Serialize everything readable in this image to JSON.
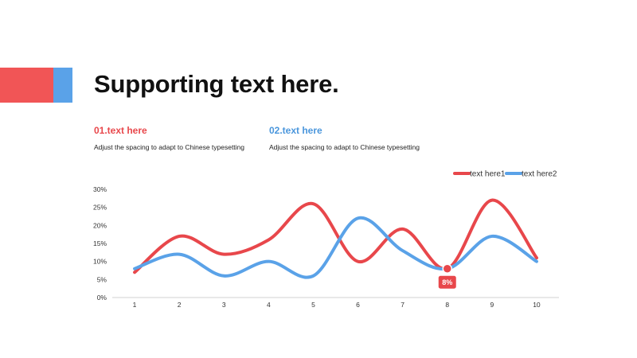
{
  "title": "Supporting text here.",
  "sections": [
    {
      "heading": "01.text here",
      "body": "Adjust the spacing to adapt to Chinese typesetting",
      "color": "#e8474b"
    },
    {
      "heading": "02.text here",
      "body": "Adjust the spacing to adapt to Chinese typesetting",
      "color": "#4a96dc"
    }
  ],
  "colors": {
    "red": "#f15556",
    "blue": "#5aa2e8"
  },
  "chart_data": {
    "type": "line",
    "smooth": true,
    "x": [
      1,
      2,
      3,
      4,
      5,
      6,
      7,
      8,
      9,
      10
    ],
    "series": [
      {
        "name": "text here1",
        "color": "#e8474b",
        "values": [
          7,
          17,
          12,
          16,
          26,
          10,
          19,
          8,
          27,
          11
        ]
      },
      {
        "name": "text here2",
        "color": "#5aa2e8",
        "values": [
          8,
          12,
          6,
          10,
          6,
          22,
          13,
          8,
          17,
          10
        ]
      }
    ],
    "ylim": [
      0,
      30
    ],
    "yticks": [
      "0%",
      "5%",
      "10%",
      "15%",
      "20%",
      "25%",
      "30%"
    ],
    "ytick_values": [
      0,
      5,
      10,
      15,
      20,
      25,
      30
    ],
    "xticks": [
      "1",
      "2",
      "3",
      "4",
      "5",
      "6",
      "7",
      "8",
      "9",
      "10"
    ],
    "legend": "top-right",
    "grid": false,
    "annotation": {
      "series": 0,
      "x": 8,
      "label": "8%"
    }
  }
}
